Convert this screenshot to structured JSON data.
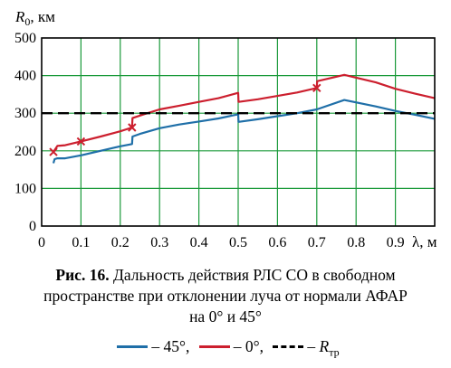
{
  "chart_data": {
    "type": "line",
    "ylabel_main": "R",
    "ylabel_sub": "0",
    "ylabel_unit": ", км",
    "xlabel": "λ, м",
    "xlim": [
      0,
      1.0
    ],
    "ylim": [
      0,
      500
    ],
    "x_ticks": [
      "0",
      "0.1",
      "0.2",
      "0.3",
      "0.4",
      "0.5",
      "0.6",
      "0.7",
      "0.8",
      "0.9"
    ],
    "y_ticks": [
      "0",
      "100",
      "200",
      "300",
      "400",
      "500"
    ],
    "grid": true,
    "colors": {
      "s45": "#1f6fa8",
      "s0": "#cc1f2e",
      "req": "#000000",
      "grid": "#1a9a3a"
    },
    "series": [
      {
        "key": "s45",
        "x": [
          0.03,
          0.033,
          0.04,
          0.06,
          0.1,
          0.15,
          0.2,
          0.23,
          0.231,
          0.25,
          0.3,
          0.35,
          0.4,
          0.45,
          0.5,
          0.501,
          0.55,
          0.6,
          0.65,
          0.7,
          0.77,
          0.85,
          0.9,
          0.95,
          1.0
        ],
        "y": [
          167,
          178,
          180,
          180,
          188,
          200,
          212,
          218,
          238,
          245,
          260,
          270,
          278,
          286,
          297,
          277,
          284,
          292,
          300,
          310,
          335,
          318,
          306,
          296,
          285
        ]
      },
      {
        "key": "s0",
        "x": [
          0.03,
          0.04,
          0.06,
          0.1,
          0.15,
          0.2,
          0.23,
          0.231,
          0.26,
          0.3,
          0.35,
          0.4,
          0.45,
          0.5,
          0.501,
          0.55,
          0.6,
          0.65,
          0.7,
          0.701,
          0.77,
          0.85,
          0.9,
          0.95,
          1.0
        ],
        "y": [
          197,
          213,
          215,
          225,
          238,
          252,
          262,
          287,
          297,
          310,
          320,
          330,
          340,
          354,
          330,
          337,
          346,
          355,
          367,
          385,
          402,
          382,
          365,
          352,
          340
        ]
      },
      {
        "key": "req",
        "x": [
          0,
          1.0
        ],
        "y": [
          300,
          300
        ]
      }
    ],
    "markers": {
      "key": "s0",
      "x": [
        0.03,
        0.1,
        0.23,
        0.7
      ],
      "y": [
        197,
        225,
        262,
        367
      ]
    }
  },
  "caption": {
    "fig": "Рис. 16.",
    "line1": " Дальность действия РЛС СО в свободном",
    "line2": "пространстве при отклонении луча от нормали АФАР",
    "line3": "на 0° и 45°"
  },
  "legend": {
    "s45": "– 45°,",
    "s0": "– 0°,",
    "req_prefix": "– ",
    "req_main": "R",
    "req_sub": "тр"
  }
}
